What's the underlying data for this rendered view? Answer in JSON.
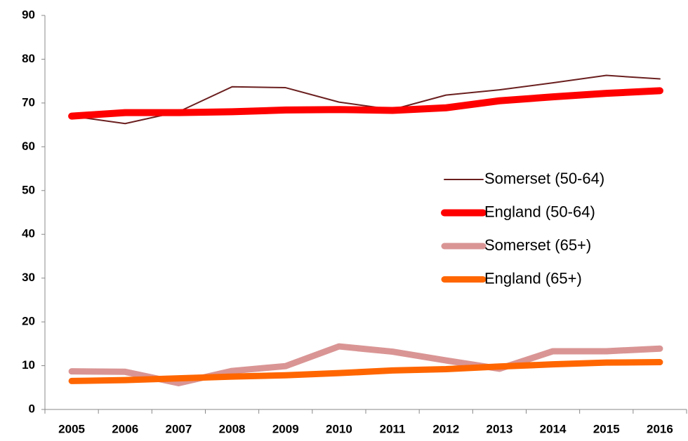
{
  "chart_data": {
    "type": "line",
    "categories": [
      "2005",
      "2006",
      "2007",
      "2008",
      "2009",
      "2010",
      "2011",
      "2012",
      "2013",
      "2014",
      "2015",
      "2016"
    ],
    "series": [
      {
        "name": "Somerset (50-64)",
        "color": "#6b1f1f",
        "values": [
          67,
          65.3,
          68,
          73.7,
          73.5,
          70.2,
          68.5,
          71.8,
          73,
          74.6,
          76.3,
          75.5
        ]
      },
      {
        "name": "England (50-64)",
        "color": "#ff0000",
        "values": [
          67,
          67.8,
          67.8,
          68,
          68.4,
          68.5,
          68.3,
          68.9,
          70.5,
          71.4,
          72.2,
          72.8
        ]
      },
      {
        "name": "Somerset (65+)",
        "color": "#d99594",
        "values": [
          8.7,
          8.6,
          6,
          8.8,
          9.9,
          14.4,
          13.2,
          11.2,
          9.3,
          13.3,
          13.3,
          13.9
        ]
      },
      {
        "name": "England (65+)",
        "color": "#ff6600",
        "values": [
          6.5,
          6.7,
          7.1,
          7.5,
          7.8,
          8.3,
          8.9,
          9.2,
          9.8,
          10.3,
          10.7,
          10.8
        ]
      }
    ],
    "ylim": [
      0,
      90
    ],
    "yticks": [
      0,
      10,
      20,
      30,
      40,
      50,
      60,
      70,
      80,
      90
    ],
    "grid": false,
    "legend": "right"
  }
}
